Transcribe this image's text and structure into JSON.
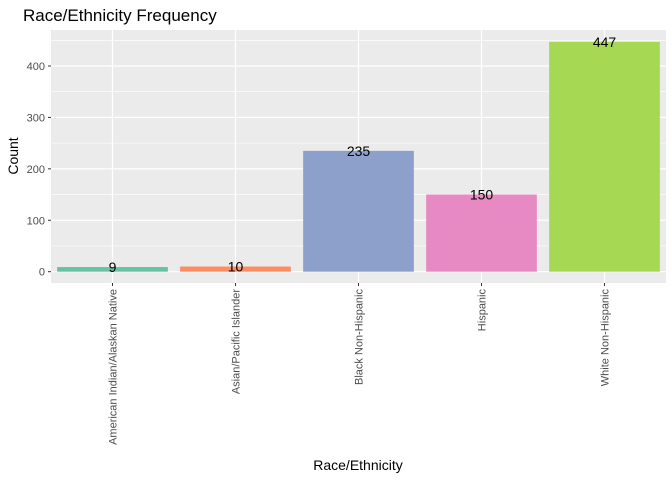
{
  "chart_data": {
    "type": "bar",
    "title": "Race/Ethnicity Frequency",
    "xlabel": "Race/Ethnicity",
    "ylabel": "Count",
    "categories": [
      "American Indian/Alaskan Native",
      "Asian/Pacific Islander",
      "Black Non-Hispanic",
      "Hispanic",
      "White Non-Hispanic"
    ],
    "values": [
      9,
      10,
      235,
      150,
      447
    ],
    "data_labels": [
      "9",
      "10",
      "235",
      "150",
      "447"
    ],
    "colors": [
      "#66c2a5",
      "#fc8d62",
      "#8da0cb",
      "#e78ac3",
      "#a6d854"
    ],
    "y_ticks": [
      0,
      100,
      200,
      300,
      400
    ],
    "y_tick_labels": [
      "0",
      "100",
      "200",
      "300",
      "400"
    ],
    "ylim": [
      -22,
      470
    ],
    "grid": true,
    "legend": "none",
    "background": "#ebebeb"
  }
}
